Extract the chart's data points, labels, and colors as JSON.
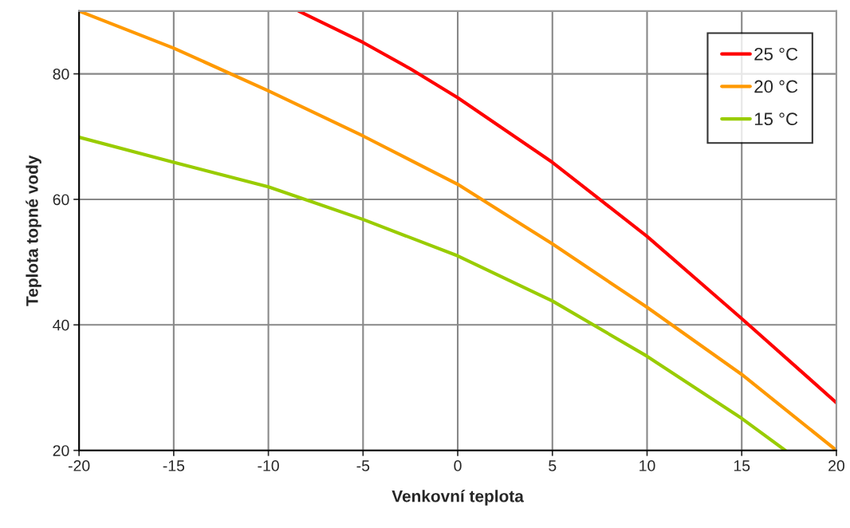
{
  "chart_data": {
    "type": "line",
    "xlabel": "Venkovní teplota",
    "ylabel": "Teplota topné vody",
    "xlim": [
      -20,
      20
    ],
    "xticks": [
      -20,
      -15,
      -10,
      -5,
      0,
      5,
      10,
      15,
      20
    ],
    "ylim": [
      20,
      90
    ],
    "yticks": [
      20,
      40,
      60,
      80
    ],
    "grid": true,
    "legend": "top right",
    "marker": "none",
    "line_style": "solid",
    "series": [
      {
        "name": "25 °C",
        "color": "#ff0000",
        "x": [
          -8.4,
          -5,
          -2.5,
          0,
          5,
          10,
          15,
          20
        ],
        "values": [
          90,
          85,
          80.8,
          76.2,
          65.9,
          54.1,
          41,
          27.6
        ]
      },
      {
        "name": "20 °C",
        "color": "#ff9900",
        "x": [
          -20,
          -15,
          -10,
          -5,
          0,
          5,
          10,
          15,
          20
        ],
        "values": [
          90,
          84.1,
          77.3,
          70.1,
          62.4,
          52.9,
          42.8,
          32.1,
          20
        ]
      },
      {
        "name": "15 °C",
        "color": "#99cc00",
        "x": [
          -20,
          -15,
          -10,
          -5,
          0,
          5,
          10,
          15,
          17.3
        ],
        "values": [
          69.9,
          65.9,
          62,
          56.8,
          51,
          43.8,
          35,
          25.1,
          20
        ]
      }
    ]
  }
}
